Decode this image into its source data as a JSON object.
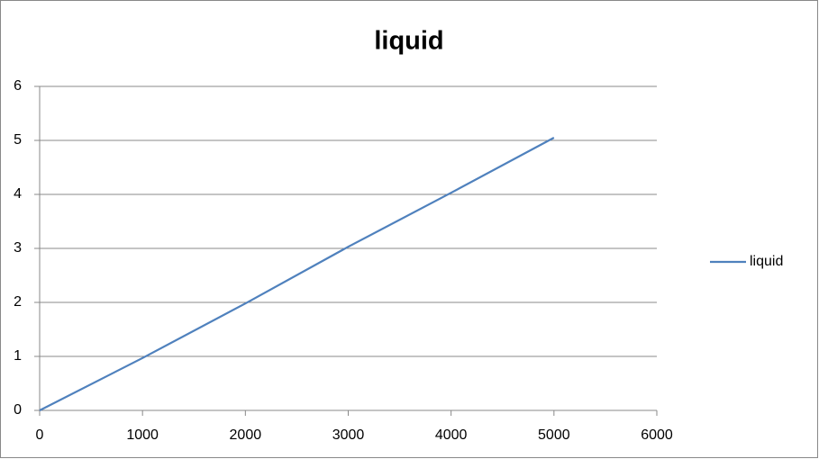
{
  "chart_data": {
    "type": "line",
    "title": "liquid",
    "x": [
      0,
      1000,
      2000,
      3000,
      4000,
      5000
    ],
    "series": [
      {
        "name": "liquid",
        "color": "#4f81bd",
        "values": [
          0,
          0.97,
          1.98,
          3.03,
          4.03,
          5.05
        ]
      }
    ],
    "xlim": [
      0,
      6000
    ],
    "xticks": [
      0,
      1000,
      2000,
      3000,
      4000,
      5000,
      6000
    ],
    "ylim": [
      0,
      6
    ],
    "yticks": [
      0,
      1,
      2,
      3,
      4,
      5,
      6
    ],
    "grid": true,
    "legend": "right"
  }
}
